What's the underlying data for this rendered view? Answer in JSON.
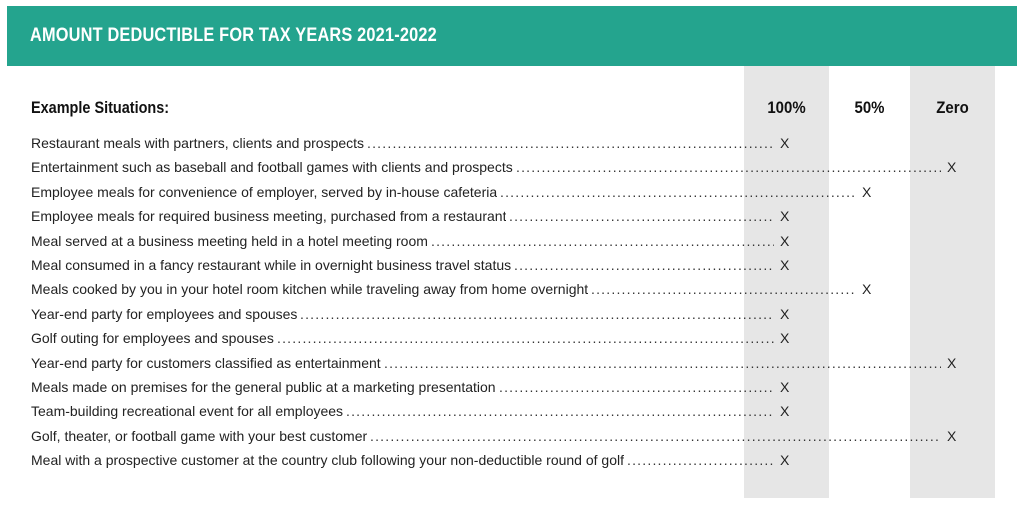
{
  "banner": {
    "title": "AMOUNT DEDUCTIBLE FOR TAX YEARS 2021-2022",
    "color": "#24a48e"
  },
  "table": {
    "subtitle": "Example Situations:",
    "columns": [
      "100%",
      "50%",
      "Zero"
    ],
    "mark": "X",
    "rows": [
      {
        "situation": "Restaurant meals with partners, clients and prospects",
        "deductible": "100%"
      },
      {
        "situation": "Entertainment such as baseball and football games with clients and prospects",
        "deductible": "Zero"
      },
      {
        "situation": "Employee meals for convenience of employer, served by in-house cafeteria",
        "deductible": "50%"
      },
      {
        "situation": "Employee meals for required business meeting, purchased from a restaurant",
        "deductible": "100%"
      },
      {
        "situation": "Meal served at a business meeting held in a hotel meeting room",
        "deductible": "100%"
      },
      {
        "situation": "Meal consumed in a fancy restaurant while in overnight business travel status",
        "deductible": "100%"
      },
      {
        "situation": "Meals cooked by you in your hotel room kitchen while traveling away from home overnight",
        "deductible": "50%"
      },
      {
        "situation": "Year-end party for employees and spouses",
        "deductible": "100%"
      },
      {
        "situation": "Golf outing for employees and spouses",
        "deductible": "100%"
      },
      {
        "situation": "Year-end party for customers classified as entertainment",
        "deductible": "Zero"
      },
      {
        "situation": "Meals made on premises for the general public at a marketing presentation",
        "deductible": "100%"
      },
      {
        "situation": "Team-building recreational event for all employees",
        "deductible": "100%"
      },
      {
        "situation": "Golf, theater, or football game with your best customer",
        "deductible": "Zero"
      },
      {
        "situation": "Meal with a prospective customer at the country club following your non-deductible round of golf",
        "deductible": "100%"
      }
    ]
  }
}
